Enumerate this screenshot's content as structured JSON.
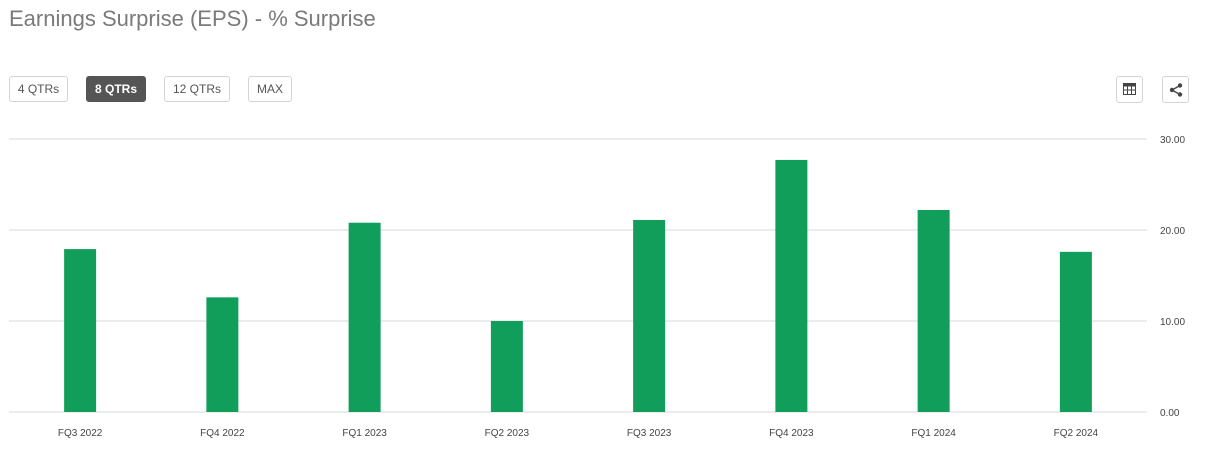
{
  "header": {
    "title": "Earnings Surprise (EPS) - % Surprise"
  },
  "range_buttons": [
    {
      "label": "4 QTRs",
      "active": false
    },
    {
      "label": "8 QTRs",
      "active": true
    },
    {
      "label": "12 QTRs",
      "active": false
    },
    {
      "label": "MAX",
      "active": false
    }
  ],
  "tools": {
    "table_icon": "table-icon",
    "share_icon": "share-icon"
  },
  "colors": {
    "bar": "#119e5a",
    "grid": "#d9d9d9",
    "tick_text": "#444444"
  },
  "chart_data": {
    "type": "bar",
    "categories": [
      "FQ3 2022",
      "FQ4 2022",
      "FQ1 2023",
      "FQ2 2023",
      "FQ3 2023",
      "FQ4 2023",
      "FQ1 2024",
      "FQ2 2024"
    ],
    "values": [
      17.9,
      12.6,
      20.8,
      10.0,
      21.1,
      27.7,
      22.2,
      17.6
    ],
    "y_ticks": [
      "0.00",
      "10.00",
      "20.00",
      "30.00"
    ],
    "ylim": [
      0,
      30
    ],
    "y_axis_side": "right",
    "grid": true,
    "title": "",
    "xlabel": "",
    "ylabel": ""
  }
}
